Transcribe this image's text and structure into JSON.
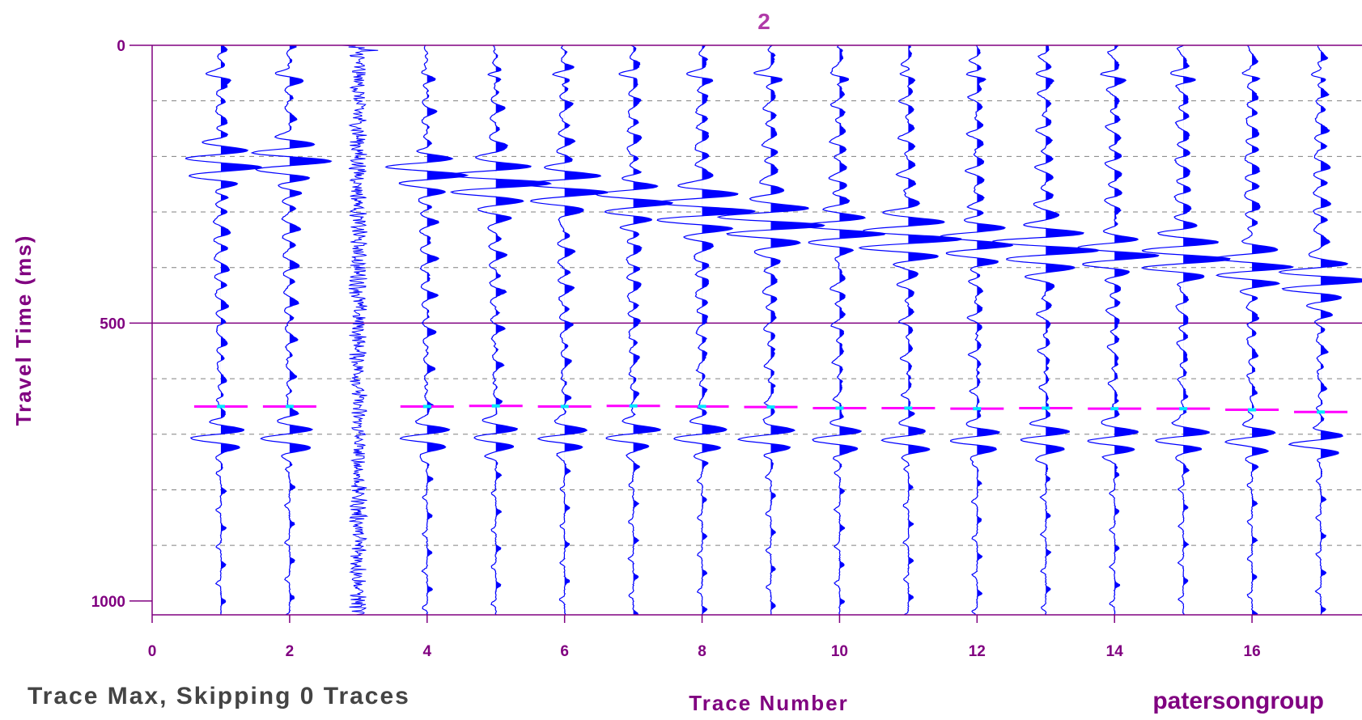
{
  "chart_data": {
    "type": "line",
    "title": "2",
    "xlabel": "Trace Number",
    "ylabel": "Travel Time (ms)",
    "xlim": [
      0,
      17.6
    ],
    "ylim": [
      0,
      1025
    ],
    "y_inverted": true,
    "x_ticks": [
      0,
      2,
      4,
      6,
      8,
      10,
      12,
      14,
      16
    ],
    "x_tick_labels": [
      "0",
      "2",
      "4",
      "6",
      "8",
      "10",
      "12",
      "14",
      "16"
    ],
    "y_ticks": [
      0,
      500,
      1000
    ],
    "y_tick_labels": [
      "0",
      "500",
      "1000"
    ],
    "y_gridlines_major": [
      500
    ],
    "y_gridlines_minor": [
      100,
      200,
      300,
      400,
      600,
      700,
      800,
      900
    ],
    "grid": true,
    "fill_positive": true,
    "traces": [
      1,
      2,
      3,
      4,
      5,
      6,
      7,
      8,
      9,
      10,
      11,
      12,
      13,
      14,
      15,
      16,
      17
    ],
    "noisy_traces": [
      3
    ],
    "first_break_ms": [
      180,
      170,
      null,
      195,
      210,
      225,
      245,
      260,
      285,
      300,
      310,
      320,
      330,
      340,
      345,
      360,
      385
    ],
    "picks": {
      "traces": [
        1,
        2,
        4,
        5,
        6,
        7,
        8,
        9,
        10,
        11,
        12,
        13,
        14,
        15,
        16,
        17
      ],
      "times": [
        650,
        650,
        650,
        649,
        650,
        649,
        650,
        651,
        653,
        653,
        654,
        653,
        654,
        654,
        656,
        660
      ]
    },
    "colors": {
      "wiggle": "#0000ff",
      "pick": "#ff00ff",
      "pick_center": "#00e5ff",
      "axis": "#800080",
      "gridline": "#808080"
    }
  },
  "footer": {
    "left_text": "Trace Max, Skipping 0 Traces",
    "right_text": "patersongroup"
  }
}
